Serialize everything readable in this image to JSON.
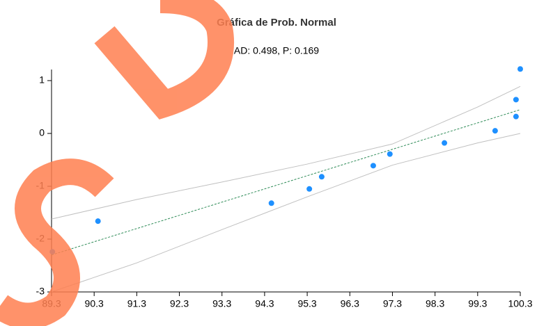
{
  "chart_data": {
    "type": "scatter",
    "title": "Gráfica de Prob. Normal",
    "subtitle": "AD: 0.498, P: 0.169",
    "x": [
      89.32,
      90.39,
      94.46,
      95.35,
      95.64,
      96.85,
      97.24,
      98.52,
      99.71,
      100.2,
      100.2,
      100.3
    ],
    "values": [
      -2.24,
      -1.66,
      -1.32,
      -1.05,
      -0.82,
      -0.61,
      -0.39,
      -0.18,
      0.05,
      0.32,
      0.64,
      1.22
    ],
    "color": "#1e90ff",
    "fit_line": {
      "x": [
        89.3,
        100.3
      ],
      "values": [
        -2.3,
        0.45
      ],
      "color": "#2e8b57"
    },
    "bands": [
      {
        "x": [
          89.3,
          91.3,
          93.3,
          95.3,
          97.3,
          99.3,
          100.3
        ],
        "values": [
          -1.62,
          -1.25,
          -0.92,
          -0.58,
          -0.2,
          0.5,
          0.89
        ],
        "color": "#c0c0c0"
      },
      {
        "x": [
          89.3,
          91.3,
          93.3,
          95.3,
          97.3,
          99.3,
          100.3
        ],
        "values": [
          -3.0,
          -2.45,
          -1.82,
          -1.2,
          -0.6,
          -0.18,
          0.0
        ],
        "color": "#c0c0c0"
      }
    ],
    "xlim": [
      89.3,
      100.3
    ],
    "xticks": [
      89.3,
      90.3,
      91.3,
      92.3,
      93.3,
      94.3,
      95.3,
      96.3,
      97.3,
      98.3,
      99.3,
      100.3
    ],
    "ylim": [
      -3,
      1.21
    ],
    "yticks": [
      -3,
      -2,
      -1,
      0,
      1
    ]
  }
}
